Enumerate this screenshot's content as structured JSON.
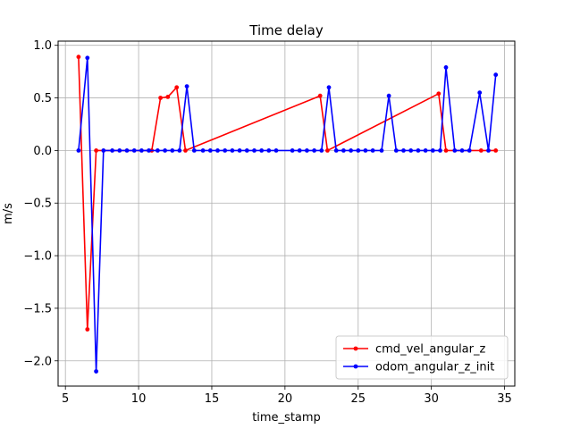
{
  "chart_data": {
    "type": "line",
    "title": "Time delay",
    "xlabel": "time_stamp",
    "ylabel": "m/s",
    "xlim": [
      4.5,
      35.7
    ],
    "ylim": [
      -2.24,
      1.04
    ],
    "xticks": [
      5,
      10,
      15,
      20,
      25,
      30,
      35
    ],
    "yticks": [
      -2.0,
      -1.5,
      -1.0,
      -0.5,
      0.0,
      0.5,
      1.0
    ],
    "xtick_labels": [
      "5",
      "10",
      "15",
      "20",
      "25",
      "30",
      "35"
    ],
    "ytick_labels": [
      "−2.0",
      "−1.5",
      "−1.0",
      "−0.5",
      "0.0",
      "0.5",
      "1.0"
    ],
    "grid": true,
    "legend_position": "lower-right",
    "series": [
      {
        "name": "cmd_vel_angular_z",
        "color": "#ff0000",
        "x": [
          5.9,
          6.5,
          7.1,
          10.9,
          11.5,
          12.0,
          12.6,
          13.2,
          22.4,
          22.9,
          30.5,
          31.0,
          33.4,
          34.4
        ],
        "y": [
          0.89,
          -1.7,
          0.0,
          0.0,
          0.5,
          0.51,
          0.6,
          0.0,
          0.52,
          0.0,
          0.54,
          0.0,
          0.0,
          0.0
        ]
      },
      {
        "name": "odom_angular_z_init",
        "color": "#0000ff",
        "x": [
          5.9,
          6.5,
          7.1,
          7.6,
          8.2,
          8.7,
          9.2,
          9.7,
          10.2,
          10.7,
          11.3,
          11.8,
          12.3,
          12.8,
          13.3,
          13.8,
          14.4,
          14.9,
          15.4,
          15.9,
          16.4,
          16.9,
          17.4,
          17.9,
          18.4,
          18.9,
          19.4,
          20.5,
          21.0,
          21.5,
          22.0,
          22.5,
          23.0,
          23.5,
          24.0,
          24.5,
          25.0,
          25.5,
          26.0,
          26.6,
          27.1,
          27.6,
          28.1,
          28.6,
          29.1,
          29.6,
          30.1,
          30.6,
          31.0,
          31.6,
          32.1,
          32.6,
          33.3,
          33.9,
          34.4
        ],
        "y": [
          0.0,
          0.88,
          -2.1,
          0.0,
          0.0,
          0.0,
          0.0,
          0.0,
          0.0,
          0.0,
          0.0,
          0.0,
          0.0,
          0.0,
          0.61,
          0.0,
          0.0,
          0.0,
          0.0,
          0.0,
          0.0,
          0.0,
          0.0,
          0.0,
          0.0,
          0.0,
          0.0,
          0.0,
          0.0,
          0.0,
          0.0,
          0.0,
          0.6,
          0.0,
          0.0,
          0.0,
          0.0,
          0.0,
          0.0,
          0.0,
          0.52,
          0.0,
          0.0,
          0.0,
          0.0,
          0.0,
          0.0,
          0.0,
          0.79,
          0.0,
          0.0,
          0.0,
          0.55,
          0.0,
          0.72
        ]
      }
    ]
  }
}
